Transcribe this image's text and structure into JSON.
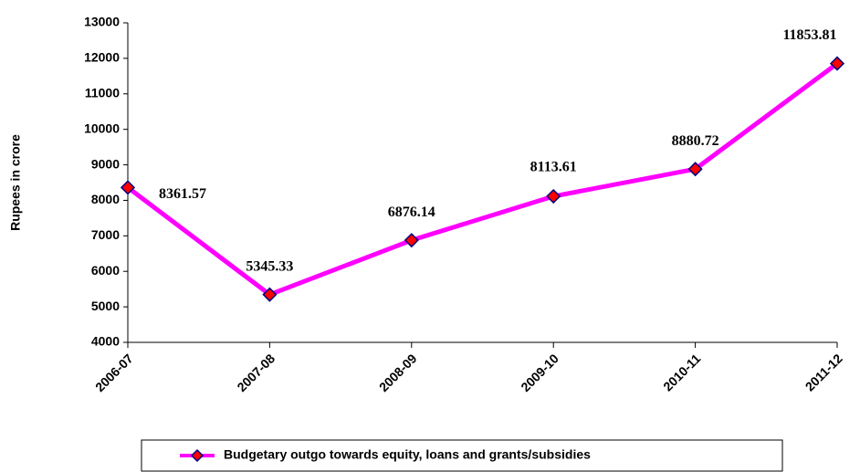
{
  "chart_data": {
    "type": "line",
    "y_label": "Rupees in crore",
    "categories": [
      "2006-07",
      "2007-08",
      "2008-09",
      "2009-10",
      "2010-11",
      "2011-12"
    ],
    "series": [
      {
        "name": "Budgetary outgo towards equity, loans and grants/subsidies",
        "color": "#ff00ff",
        "marker_color": "#ff0000",
        "values": [
          8361.57,
          5345.33,
          6876.14,
          8113.61,
          8880.72,
          11853.81
        ]
      }
    ],
    "ylim": [
      4000,
      13000
    ],
    "yticks": [
      4000,
      5000,
      6000,
      7000,
      8000,
      9000,
      10000,
      11000,
      12000,
      13000
    ],
    "grid": false,
    "legend": "bottom"
  }
}
